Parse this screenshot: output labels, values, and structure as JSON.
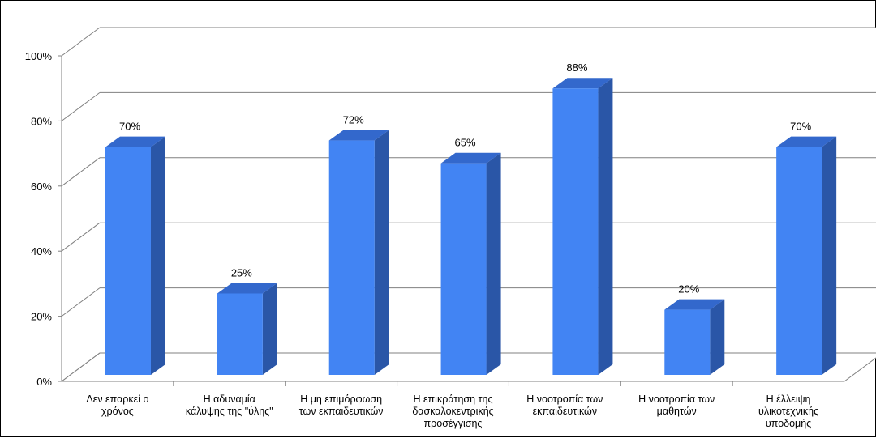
{
  "chart_data": {
    "type": "bar",
    "title": "",
    "xlabel": "",
    "ylabel": "",
    "categories": [
      [
        "Δεν επαρκεί ο",
        "χρόνος"
      ],
      [
        "Η αδυναμία",
        "κάλυψης της \"ύλης\""
      ],
      [
        "Η μη επιμόρφωση",
        "των εκπαιδευτικών"
      ],
      [
        "Η επικράτηση της",
        "δασκαλοκεντρικής",
        "προσέγγισης"
      ],
      [
        "Η νοοτροπία των",
        "εκπαιδευτικών"
      ],
      [
        "Η νοοτροπία των",
        "μαθητών"
      ],
      [
        "Η έλλειψη",
        "υλικοτεχνικής",
        "υποδομής"
      ]
    ],
    "values": [
      70,
      25,
      72,
      65,
      88,
      20,
      70
    ],
    "data_labels": [
      "70%",
      "25%",
      "72%",
      "65%",
      "88%",
      "20%",
      "70%"
    ],
    "ylim": [
      0,
      100
    ],
    "yticks": [
      "0%",
      "20%",
      "40%",
      "60%",
      "80%",
      "100%"
    ],
    "grid": true,
    "style": "3d-column",
    "colors": {
      "bar_front": "#4284F3",
      "bar_side": "#2A56A7",
      "bar_top": "#3368CC",
      "grid": "#808080"
    }
  }
}
